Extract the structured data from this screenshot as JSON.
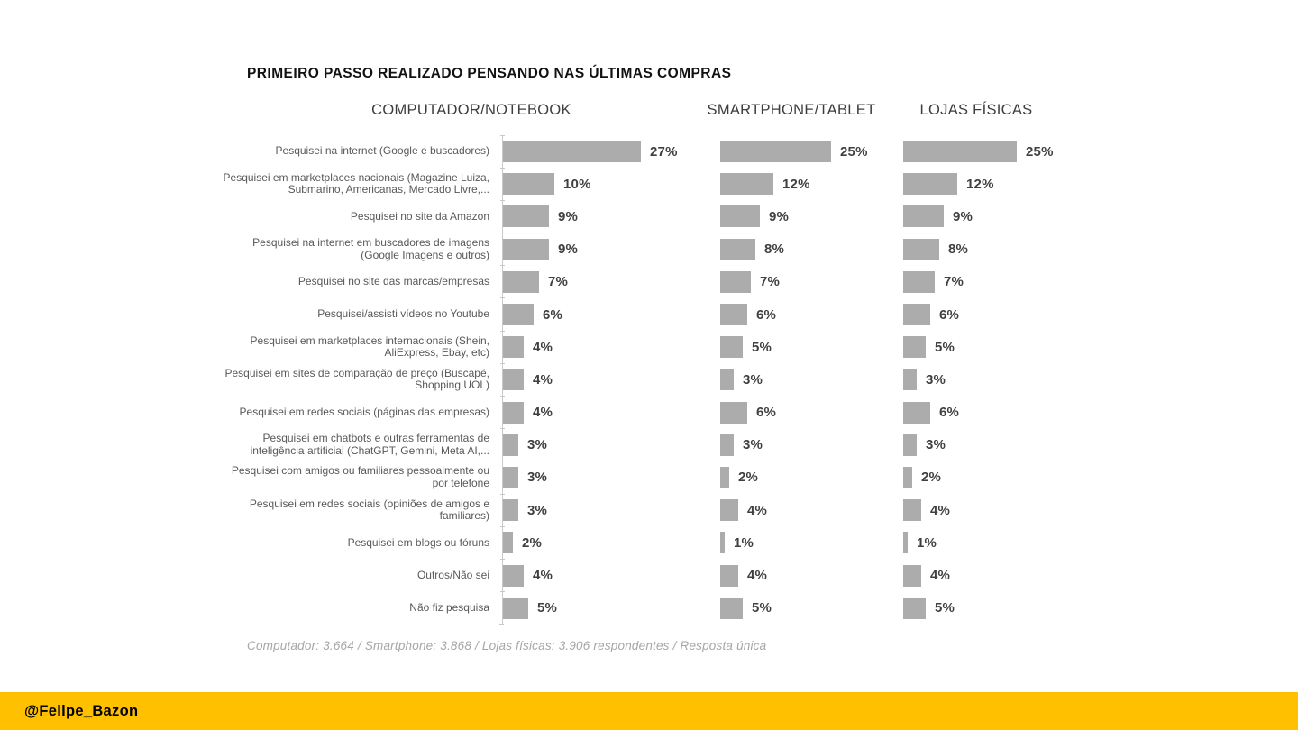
{
  "slide": {
    "title": "PRIMEIRO PASSO REALIZADO PENSANDO NAS ÚLTIMAS COMPRAS",
    "footer_note": "Computador: 3.664 / Smartphone: 3.868 / Lojas físicas: 3.906 respondentes / Resposta única",
    "credit_handle": "@Fellpe_Bazon"
  },
  "colors": {
    "bar": "#ACACAC",
    "value-label": "#404040",
    "row-label": "#595959",
    "axis": "#C9C9C9",
    "credit-bg": "#FFC000",
    "footer-note": "#A6A6A6"
  },
  "chart_data": {
    "type": "bar",
    "orientation": "horizontal",
    "grid": false,
    "value_suffix": "%",
    "legend_position": "column-headers",
    "categories": [
      "Pesquisei na internet (Google e buscadores)",
      "Pesquisei em marketplaces nacionais (Magazine Luiza, Submarino, Americanas, Mercado Livre,...",
      "Pesquisei no site da Amazon",
      "Pesquisei na internet em buscadores de imagens (Google Imagens e outros)",
      "Pesquisei no site das marcas/empresas",
      "Pesquisei/assisti vídeos no Youtube",
      "Pesquisei em marketplaces internacionais (Shein, AliExpress, Ebay, etc)",
      "Pesquisei em sites de comparação de preço (Buscapé, Shopping UOL)",
      "Pesquisei em redes sociais (páginas das empresas)",
      "Pesquisei em chatbots e outras ferramentas de inteligência artificial (ChatGPT, Gemini, Meta AI,...",
      "Pesquisei com amigos ou familiares pessoalmente ou por telefone",
      "Pesquisei em redes sociais (opiniões de amigos e familiares)",
      "Pesquisei em blogs ou fóruns",
      "Outros/Não sei",
      "Não fiz pesquisa"
    ],
    "series": [
      {
        "name": "COMPUTADOR/NOTEBOOK",
        "values": [
          27,
          10,
          9,
          9,
          7,
          6,
          4,
          4,
          4,
          3,
          3,
          3,
          2,
          4,
          5
        ]
      },
      {
        "name": "SMARTPHONE/TABLET",
        "values": [
          25,
          12,
          9,
          8,
          7,
          6,
          5,
          3,
          6,
          3,
          2,
          4,
          1,
          4,
          5
        ]
      },
      {
        "name": "LOJAS FÍSICAS",
        "values": [
          25,
          12,
          9,
          8,
          7,
          6,
          5,
          3,
          6,
          3,
          2,
          4,
          1,
          4,
          5
        ]
      }
    ],
    "column_axis_max": [
      27,
      25,
      25
    ]
  }
}
